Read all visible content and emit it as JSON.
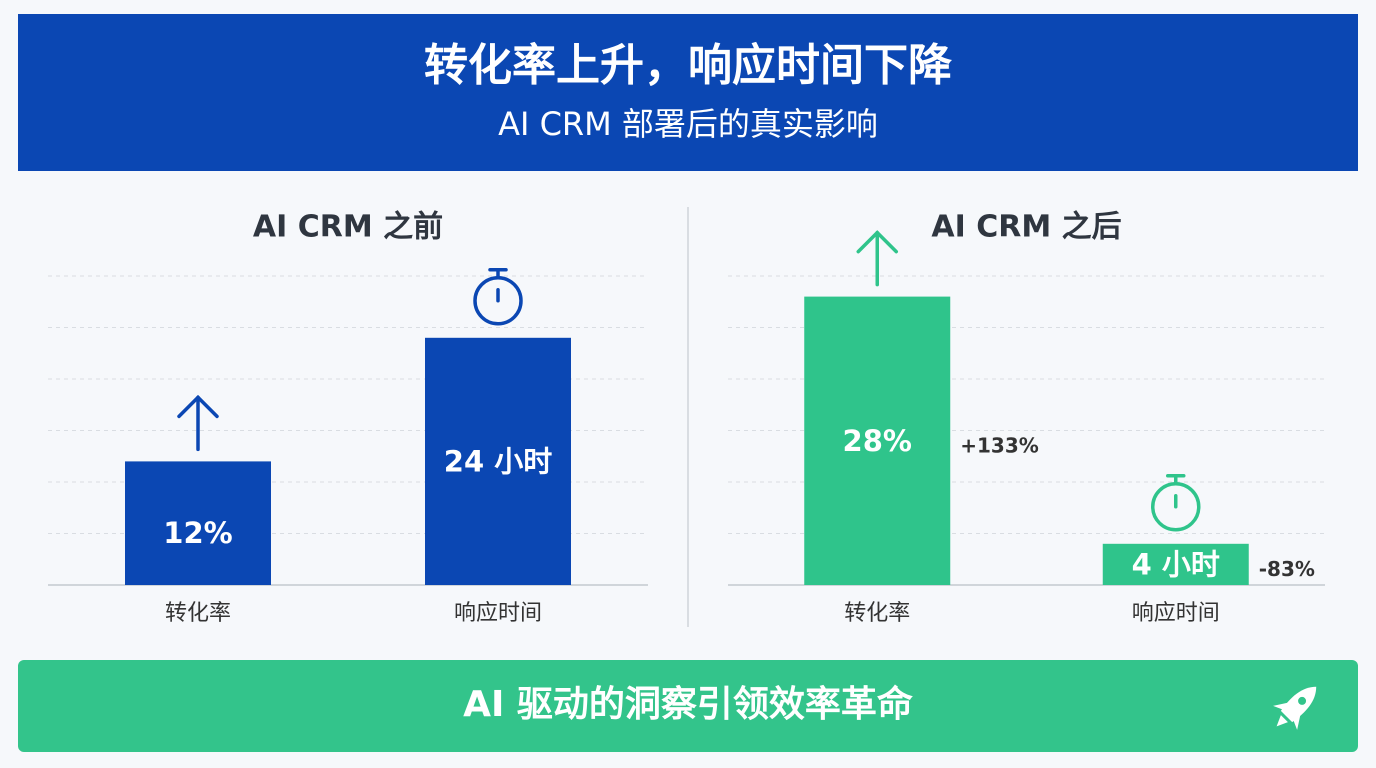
{
  "header": {
    "title": "转化率上升，响应时间下降",
    "subtitle": "AI CRM 部署后的真实影响"
  },
  "chart_data": [
    {
      "type": "bar",
      "title": "AI CRM 之前",
      "categories": [
        "转化率",
        "响应时间"
      ],
      "values": [
        12,
        24
      ],
      "value_labels": [
        "12%",
        "24 小时"
      ],
      "color": "#0b47b3",
      "ylim": [
        0,
        30
      ]
    },
    {
      "type": "bar",
      "title": "AI CRM 之后",
      "categories": [
        "转化率",
        "响应时间"
      ],
      "values": [
        28,
        4
      ],
      "value_labels": [
        "28%",
        "4 小时"
      ],
      "change_labels": [
        "+133%",
        "-83%"
      ],
      "color": "#2fc48b",
      "ylim": [
        0,
        30
      ]
    }
  ],
  "footer": {
    "text": "AI 驱动的洞察引领效率革命"
  }
}
